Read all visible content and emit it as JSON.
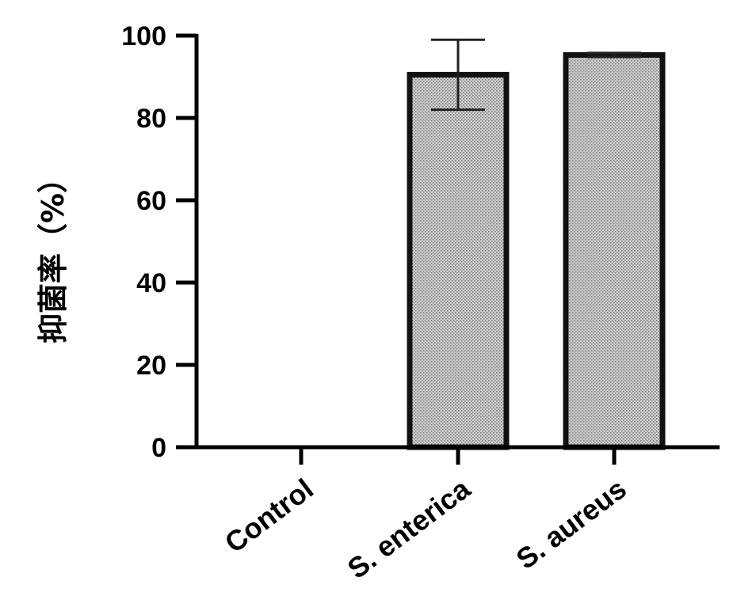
{
  "chart_data": {
    "type": "bar",
    "title": "",
    "xlabel": "",
    "ylabel": "抑菌率（%）",
    "categories": [
      "Control",
      "S. enterica",
      "S. aureus"
    ],
    "values": [
      0,
      90.5,
      95.3
    ],
    "errors": [
      0,
      8.5,
      0.5
    ],
    "ylim": [
      0,
      100
    ],
    "yticks": [
      0,
      20,
      40,
      60,
      80,
      100
    ],
    "yticks_labels": [
      "0",
      "20",
      "40",
      "60",
      "80",
      "100"
    ],
    "bar_fill": "#c4c4c4",
    "bar_edge": "#111111",
    "grid": false,
    "legend": false
  }
}
